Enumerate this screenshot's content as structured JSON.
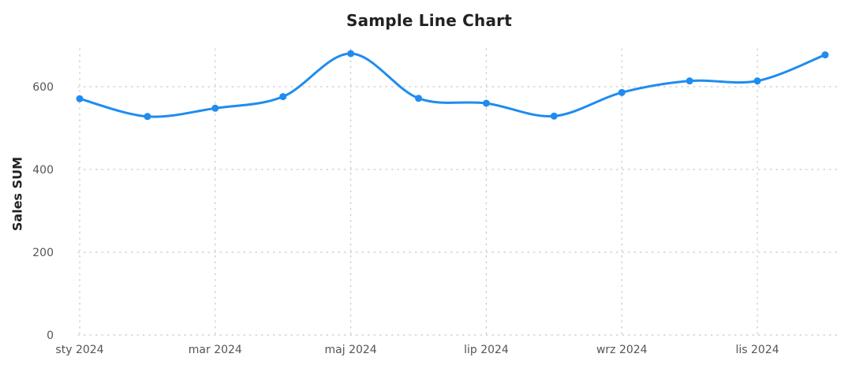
{
  "chart_data": {
    "type": "line",
    "title": "Sample Line Chart",
    "xlabel": "",
    "ylabel": "Sales SUM",
    "x_tick_labels": [
      "sty 2024",
      "mar 2024",
      "maj 2024",
      "lip 2024",
      "wrz 2024",
      "lis 2024"
    ],
    "x_tick_positions": [
      0,
      2,
      4,
      6,
      8,
      10
    ],
    "y_ticks": [
      0,
      200,
      400,
      600
    ],
    "ylim": [
      0,
      700
    ],
    "grid": true,
    "line_color": "#1f8cef",
    "series": [
      {
        "x": [
          "2024-01",
          "2024-02",
          "2024-03",
          "2024-04",
          "2024-05",
          "2024-06",
          "2024-07",
          "2024-08",
          "2024-09",
          "2024-10",
          "2024-11",
          "2024-12"
        ],
        "values": [
          571,
          528,
          548,
          576,
          680,
          572,
          560,
          529,
          586,
          614,
          614,
          677
        ]
      }
    ]
  }
}
